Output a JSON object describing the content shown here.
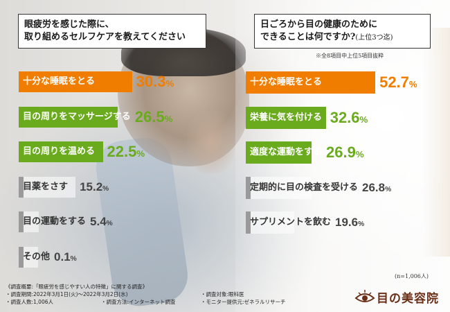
{
  "left_panel": {
    "title_line1": "眼疲労を感じた際に、",
    "title_line2": "取り組めるセルフケアを教えてください"
  },
  "right_panel": {
    "title_line1": "日ごろから目の健康のために",
    "title_line2": "できることは何ですか?",
    "title_suffix": "(上位3つ迄)",
    "note": "※全8項目中上位5項目抜粋",
    "sample_size": "(n=1,006人)"
  },
  "chart_data": [
    {
      "type": "bar",
      "title": "眼疲労を感じた際に、取り組めるセルフケアを教えてください",
      "unit": "%",
      "categories": [
        "十分な睡眠をとる",
        "目の周りをマッサージする",
        "目の周りを温める",
        "目薬をさす",
        "目の運動をする",
        "その他"
      ],
      "values": [
        30.3,
        26.5,
        22.5,
        15.2,
        5.4,
        0.1
      ],
      "colors": [
        "#f07d00",
        "#6aab1d",
        "#6aab1d",
        "#a6a6a6",
        "#a6a6a6",
        "#a6a6a6"
      ]
    },
    {
      "type": "bar",
      "title": "日ごろから目の健康のためにできることは何ですか?(上位3つ迄)",
      "unit": "%",
      "categories": [
        "十分な睡眠をとる",
        "栄養に気を付ける",
        "適度な運動をする",
        "定期的に目の検査を受ける",
        "サプリメントを飲む"
      ],
      "values": [
        52.7,
        32.6,
        26.9,
        26.8,
        19.6
      ],
      "colors": [
        "#f07d00",
        "#6aab1d",
        "#6aab1d",
        "#a6a6a6",
        "#a6a6a6"
      ]
    }
  ],
  "footer": {
    "overview": "《調査概要:「眼疲労を感じやすい人の特徴」に関する調査》",
    "period": "・調査期間:2022年3月1日(火)〜2022年3月2日(水)",
    "respondents": "・調査人数:1,006人",
    "method": "・調査方法:インターネット調査",
    "target": "・調査対象:眼科医",
    "monitor": "・モニター提供元:ゼネラルリサーチ"
  },
  "logo": {
    "text": "目の美容院",
    "icon": "eye-icon"
  }
}
